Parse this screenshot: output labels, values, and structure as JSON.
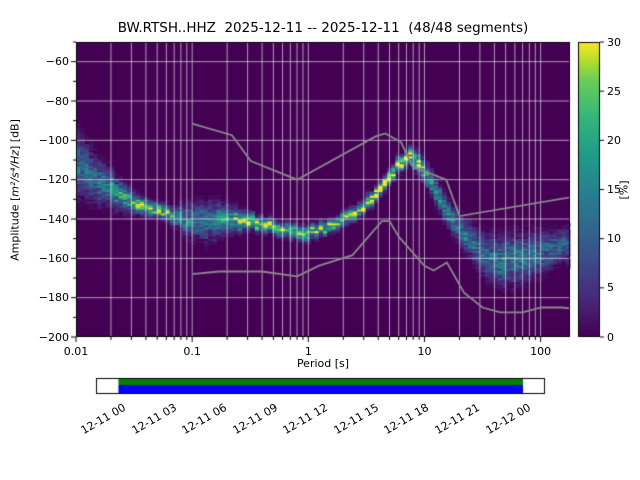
{
  "chart_data": {
    "type": "heatmap",
    "title": "BW.RTSH..HHZ  2025-12-11 -- 2025-12-11  (48/48 segments)",
    "xlabel": "Period [s]",
    "ylabel": {
      "prefix": "Amplitude [",
      "math": "m²/s⁴/Hz",
      "suffix": "] [dB]"
    },
    "x_scale": "log",
    "xlim": [
      0.01,
      179
    ],
    "ylim": [
      -200,
      -50
    ],
    "grid": true,
    "x_ticks": [
      {
        "v": 0.01,
        "label": "0.01"
      },
      {
        "v": 0.1,
        "label": "0.1"
      },
      {
        "v": 1,
        "label": "1"
      },
      {
        "v": 10,
        "label": "10"
      },
      {
        "v": 100,
        "label": "100"
      }
    ],
    "y_ticks": [
      {
        "v": -60,
        "label": "−60"
      },
      {
        "v": -80,
        "label": "−80"
      },
      {
        "v": -100,
        "label": "−100"
      },
      {
        "v": -120,
        "label": "−120"
      },
      {
        "v": -140,
        "label": "−140"
      },
      {
        "v": -160,
        "label": "−160"
      },
      {
        "v": -180,
        "label": "−180"
      },
      {
        "v": -200,
        "label": "−200"
      }
    ],
    "colorbar": {
      "label": "[%]",
      "min": 0,
      "max": 30,
      "ticks": [
        0,
        5,
        10,
        15,
        20,
        25,
        30
      ],
      "colormap": "viridis",
      "stops": [
        {
          "t": 0,
          "c": "#440154"
        },
        {
          "t": 0.125,
          "c": "#482878"
        },
        {
          "t": 0.25,
          "c": "#3e4989"
        },
        {
          "t": 0.375,
          "c": "#31688e"
        },
        {
          "t": 0.5,
          "c": "#26828e"
        },
        {
          "t": 0.625,
          "c": "#1f9e89"
        },
        {
          "t": 0.75,
          "c": "#35b779"
        },
        {
          "t": 0.875,
          "c": "#6ece58"
        },
        {
          "t": 0.9375,
          "c": "#b5de2b"
        },
        {
          "t": 1,
          "c": "#fde725"
        }
      ]
    },
    "psd_ridge": {
      "comment": "probability ridge of the PPSD histogram: mode amplitude, spread and peak probability vs period",
      "periods": [
        0.01,
        0.013,
        0.018,
        0.025,
        0.035,
        0.05,
        0.07,
        0.1,
        0.14,
        0.2,
        0.3,
        0.45,
        0.7,
        1.0,
        1.5,
        2.2,
        3.2,
        4.6,
        6.0,
        7.5,
        9.0,
        11.0,
        15.0,
        22.0,
        32.0,
        46.0,
        68.0,
        100.0,
        140.0,
        179.0
      ],
      "mode_db": [
        -112,
        -117,
        -123,
        -128,
        -132,
        -135,
        -138,
        -140,
        -141,
        -140,
        -141,
        -143,
        -146,
        -147,
        -144,
        -139,
        -132,
        -122,
        -112,
        -108,
        -112,
        -120,
        -134,
        -148,
        -158,
        -161,
        -160,
        -157,
        -154,
        -152
      ],
      "spread_db": [
        9,
        8,
        6,
        4,
        2.5,
        2,
        2.5,
        5,
        6,
        4,
        2.5,
        2,
        2,
        2.2,
        2,
        2,
        2,
        2,
        2.2,
        2.5,
        3,
        3.5,
        4,
        4.5,
        6,
        7,
        7,
        6,
        5,
        5
      ],
      "peak_pct": [
        13,
        11,
        13,
        18,
        26,
        28,
        20,
        13,
        12,
        18,
        24,
        28,
        26,
        22,
        24,
        26,
        28,
        30,
        30,
        30,
        24,
        18,
        15,
        13,
        12,
        14,
        13,
        12,
        11,
        10
      ]
    },
    "noise_models": {
      "color": "#8a8a8a",
      "high": {
        "periods": [
          0.1,
          0.22,
          0.32,
          0.8,
          3.8,
          4.6,
          6.3,
          7.9,
          15.4,
          20.0,
          354.8
        ],
        "db": [
          -91.5,
          -97.4,
          -110.5,
          -120.0,
          -98.0,
          -96.5,
          -101.0,
          -113.5,
          -120.0,
          -138.5,
          -126.0
        ]
      },
      "low": {
        "periods": [
          0.1,
          0.17,
          0.4,
          0.8,
          1.24,
          2.4,
          4.3,
          5.0,
          6.0,
          10.0,
          12.0,
          15.6,
          21.9,
          31.6,
          45.0,
          70.0,
          101.0,
          154.0,
          328.0
        ],
        "db": [
          -168.0,
          -166.7,
          -166.7,
          -169.2,
          -163.7,
          -158.4,
          -141.1,
          -141.1,
          -149.0,
          -163.8,
          -166.2,
          -162.1,
          -177.5,
          -185.0,
          -187.5,
          -187.5,
          -185.0,
          -185.0,
          -187.5
        ]
      }
    }
  },
  "timeline": {
    "labels": [
      "12-11 00",
      "12-11 03",
      "12-11 06",
      "12-11 09",
      "12-11 12",
      "12-11 15",
      "12-11 18",
      "12-11 21",
      "12-12 00"
    ],
    "bar": {
      "start_frac": 0.05,
      "end_frac": 0.951
    },
    "colors": {
      "used": "#008000",
      "data": "#0000ff"
    }
  }
}
